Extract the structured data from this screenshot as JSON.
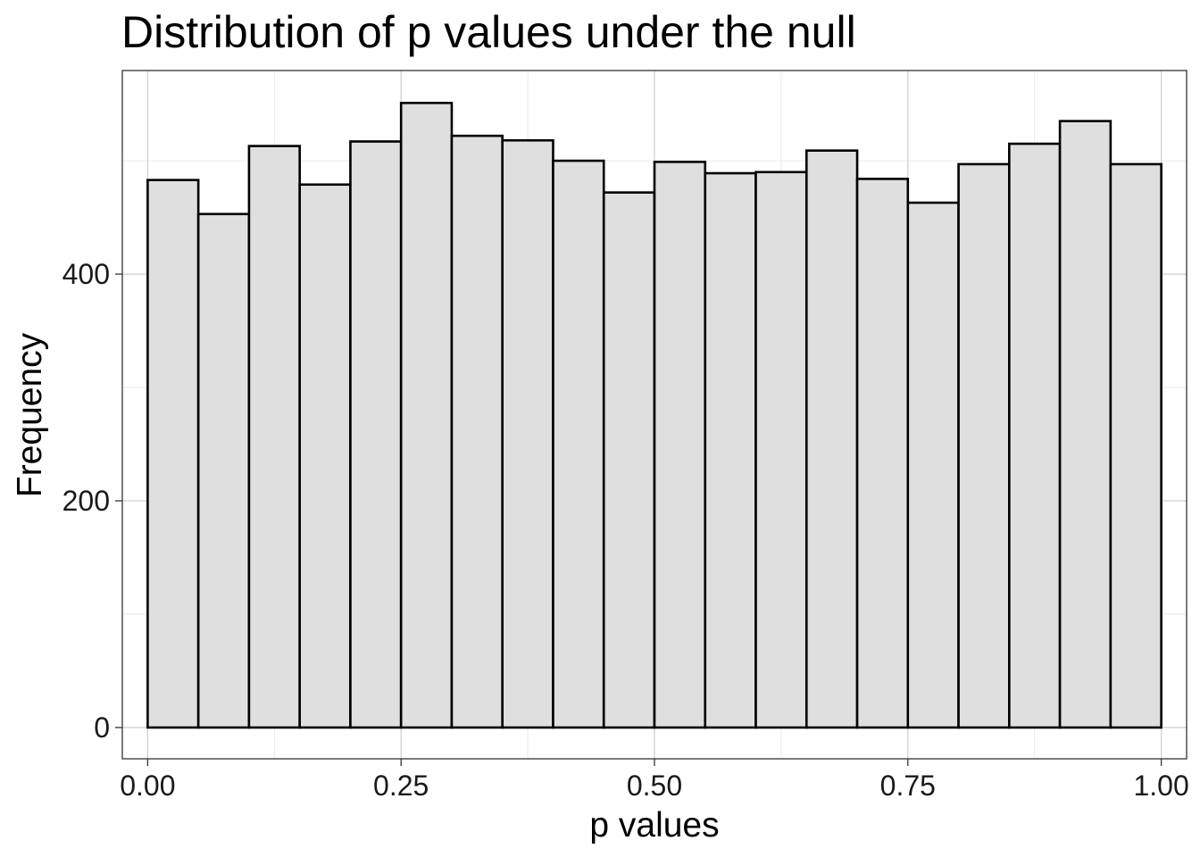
{
  "chart_data": {
    "type": "bar",
    "subtype": "histogram",
    "title": "Distribution of p values under the null",
    "xlabel": "p values",
    "ylabel": "Frequency",
    "bins": [
      {
        "x0": 0.0,
        "x1": 0.05,
        "count": 483
      },
      {
        "x0": 0.05,
        "x1": 0.1,
        "count": 453
      },
      {
        "x0": 0.1,
        "x1": 0.15,
        "count": 513
      },
      {
        "x0": 0.15,
        "x1": 0.2,
        "count": 479
      },
      {
        "x0": 0.2,
        "x1": 0.25,
        "count": 517
      },
      {
        "x0": 0.25,
        "x1": 0.3,
        "count": 551
      },
      {
        "x0": 0.3,
        "x1": 0.35,
        "count": 522
      },
      {
        "x0": 0.35,
        "x1": 0.4,
        "count": 518
      },
      {
        "x0": 0.4,
        "x1": 0.45,
        "count": 500
      },
      {
        "x0": 0.45,
        "x1": 0.5,
        "count": 472
      },
      {
        "x0": 0.5,
        "x1": 0.55,
        "count": 499
      },
      {
        "x0": 0.55,
        "x1": 0.6,
        "count": 489
      },
      {
        "x0": 0.6,
        "x1": 0.65,
        "count": 490
      },
      {
        "x0": 0.65,
        "x1": 0.7,
        "count": 509
      },
      {
        "x0": 0.7,
        "x1": 0.75,
        "count": 484
      },
      {
        "x0": 0.75,
        "x1": 0.8,
        "count": 463
      },
      {
        "x0": 0.8,
        "x1": 0.85,
        "count": 497
      },
      {
        "x0": 0.85,
        "x1": 0.9,
        "count": 515
      },
      {
        "x0": 0.9,
        "x1": 0.95,
        "count": 535
      },
      {
        "x0": 0.95,
        "x1": 1.0,
        "count": 497
      }
    ],
    "xlim": [
      -0.025,
      1.025
    ],
    "ylim": [
      -27.6,
      579.6
    ],
    "xticks": [
      0.0,
      0.25,
      0.5,
      0.75,
      1.0
    ],
    "xtick_labels": [
      "0.00",
      "0.25",
      "0.50",
      "0.75",
      "1.00"
    ],
    "yticks": [
      0,
      200,
      400
    ],
    "ytick_labels": [
      "0",
      "200",
      "400"
    ],
    "grid": true,
    "legend": "none",
    "bar_fill": "#dfdfdf",
    "bar_outline": "#000000",
    "gridline_color": "#d0d0d0",
    "panel_border_color": "#333333"
  }
}
